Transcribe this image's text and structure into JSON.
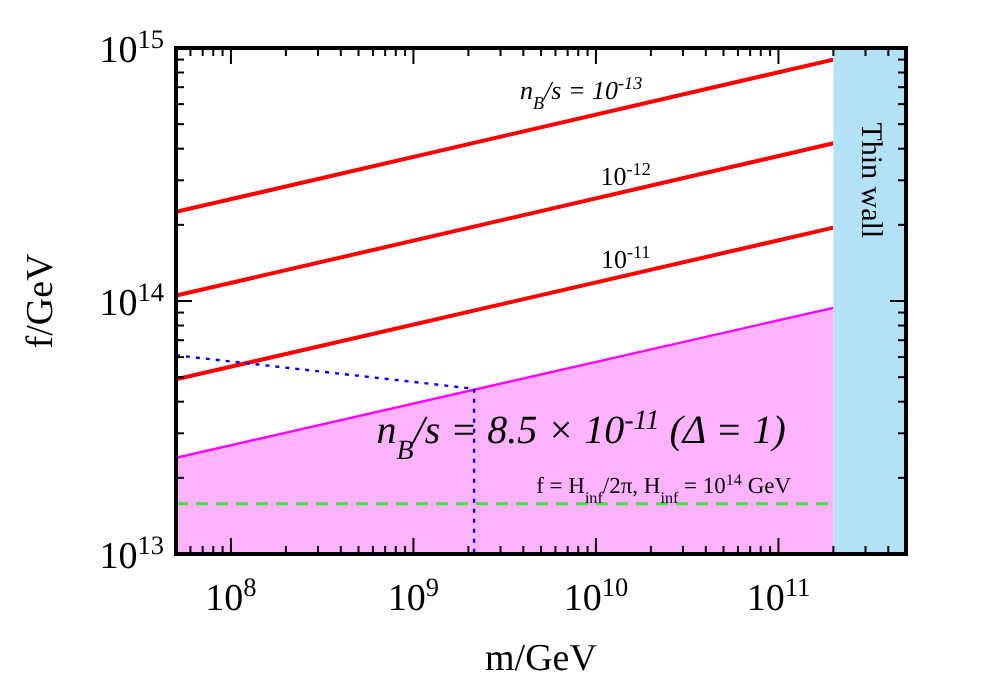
{
  "chart_data": {
    "type": "line",
    "xlabel": "m/GeV",
    "ylabel": "f/GeV",
    "log": "xy",
    "xlim": [
      50000000.0,
      500000000000.0
    ],
    "ylim": [
      10000000000000.0,
      1000000000000000.0
    ],
    "xticks": [
      {
        "value": 60000000.0,
        "label": null
      },
      {
        "value": 70000000.0,
        "label": null
      },
      {
        "value": 80000000.0,
        "label": null
      },
      {
        "value": 90000000.0,
        "label": null
      },
      {
        "value": 100000000.0,
        "label": "10$^{8}$"
      },
      {
        "value": 200000000.0,
        "label": null
      },
      {
        "value": 300000000.0,
        "label": null
      },
      {
        "value": 400000000.0,
        "label": null
      },
      {
        "value": 500000000.0,
        "label": null
      },
      {
        "value": 600000000.0,
        "label": null
      },
      {
        "value": 700000000.0,
        "label": null
      },
      {
        "value": 800000000.0,
        "label": null
      },
      {
        "value": 900000000.0,
        "label": null
      },
      {
        "value": 1000000000.0,
        "label": "10$^{9}$"
      },
      {
        "value": 2000000000.0,
        "label": null
      },
      {
        "value": 3000000000.0,
        "label": null
      },
      {
        "value": 4000000000.0,
        "label": null
      },
      {
        "value": 5000000000.0,
        "label": null
      },
      {
        "value": 6000000000.0,
        "label": null
      },
      {
        "value": 7000000000.0,
        "label": null
      },
      {
        "value": 8000000000.0,
        "label": null
      },
      {
        "value": 9000000000.0,
        "label": null
      },
      {
        "value": 10000000000.0,
        "label": "10$^{10}$"
      },
      {
        "value": 20000000000.0,
        "label": null
      },
      {
        "value": 30000000000.0,
        "label": null
      },
      {
        "value": 40000000000.0,
        "label": null
      },
      {
        "value": 50000000000.0,
        "label": null
      },
      {
        "value": 60000000000.0,
        "label": null
      },
      {
        "value": 70000000000.0,
        "label": null
      },
      {
        "value": 80000000000.0,
        "label": null
      },
      {
        "value": 90000000000.0,
        "label": null
      },
      {
        "value": 100000000000.0,
        "label": "10$^{11}$"
      },
      {
        "value": 200000000000.0,
        "label": null
      },
      {
        "value": 300000000000.0,
        "label": null
      },
      {
        "value": 400000000000.0,
        "label": null
      }
    ],
    "yticks": [
      {
        "value": 10000000000000.0,
        "label": "10$^{13}$"
      },
      {
        "value": 20000000000000.0,
        "label": null
      },
      {
        "value": 30000000000000.0,
        "label": null
      },
      {
        "value": 40000000000000.0,
        "label": null
      },
      {
        "value": 50000000000000.0,
        "label": null
      },
      {
        "value": 60000000000000.0,
        "label": null
      },
      {
        "value": 70000000000000.0,
        "label": null
      },
      {
        "value": 80000000000000.0,
        "label": null
      },
      {
        "value": 90000000000000.0,
        "label": null
      },
      {
        "value": 100000000000000.0,
        "label": "10$^{14}$"
      },
      {
        "value": 200000000000000.0,
        "label": null
      },
      {
        "value": 300000000000000.0,
        "label": null
      },
      {
        "value": 400000000000000.0,
        "label": null
      },
      {
        "value": 500000000000000.0,
        "label": null
      },
      {
        "value": 600000000000000.0,
        "label": null
      },
      {
        "value": 700000000000000.0,
        "label": null
      },
      {
        "value": 800000000000000.0,
        "label": null
      },
      {
        "value": 900000000000000.0,
        "label": null
      },
      {
        "value": 1000000000000000.0,
        "label": "10$^{15}$"
      }
    ],
    "series": [
      {
        "type": "area",
        "color": "#ff00ff",
        "x": [
          50000000.0,
          200000000000.0
        ],
        "values": [
          24000000000000.0,
          94000000000000.0
        ]
      },
      {
        "color": "#ff0000",
        "x": [
          50000000.0,
          200000000000.0
        ],
        "values": [
          225000000000000.0,
          900000000000000.0
        ]
      },
      {
        "color": "#ff0000",
        "x": [
          50000000.0,
          200000000000.0
        ],
        "values": [
          105000000000000.0,
          420000000000000.0
        ]
      },
      {
        "color": "#ff0000",
        "x": [
          50000000.0,
          200000000000.0
        ],
        "values": [
          49000000000000.0,
          195000000000000.0
        ]
      },
      {
        "color": "#0000ff",
        "line_style": "dotted",
        "x": [
          50000000.0,
          2150000000.0,
          2150000000.0
        ],
        "values": [
          61000000000000.0,
          45000000000000.0,
          10000000000000.0
        ]
      }
    ],
    "ref_lines": [
      {
        "axis": "y",
        "value": 15800000000000.0,
        "color": "#44dd44",
        "line_style": "dashed"
      }
    ],
    "bands": [
      {
        "axis": "x",
        "from": 200000000000.0,
        "to": 500000000000.0,
        "label": "Thin wall",
        "color": "#b3e2f7"
      }
    ],
    "annotations": [
      "n$_{B}$/s = 10$^{-13}$",
      "10$^{-12}$",
      "10$^{-11}$",
      "n$_{B}$/s = 8.5 × 10$^{-11}$ (Δ = 1)",
      "f = H$_{inf}$/2π, H$_{inf}$ = 10$^{14}$ GeV"
    ]
  }
}
